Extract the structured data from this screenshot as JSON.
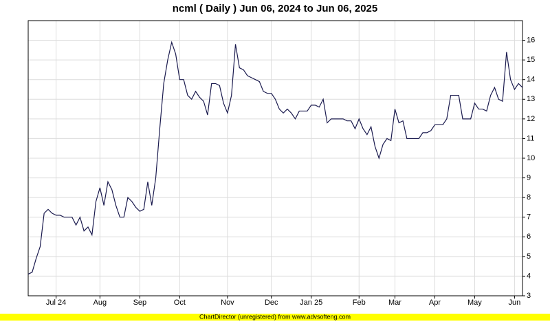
{
  "chart_data": {
    "type": "line",
    "title": "ncml ( Daily ) Jun 06, 2024 to Jun 06, 2025",
    "footer": "ChartDirector (unregistered) from www.advsofteng.com",
    "categories": [
      null,
      null,
      null,
      null,
      null,
      null,
      null,
      "Jul 24",
      null,
      null,
      null,
      null,
      null,
      null,
      null,
      null,
      null,
      null,
      "Aug",
      null,
      null,
      null,
      null,
      null,
      null,
      null,
      null,
      null,
      "Sep",
      null,
      null,
      null,
      null,
      null,
      null,
      null,
      null,
      null,
      "Oct",
      null,
      null,
      null,
      null,
      null,
      null,
      null,
      null,
      null,
      null,
      null,
      "Nov",
      null,
      null,
      null,
      null,
      null,
      null,
      null,
      null,
      null,
      null,
      "Dec",
      null,
      null,
      null,
      null,
      null,
      null,
      null,
      null,
      null,
      "Jan 25",
      null,
      null,
      null,
      null,
      null,
      null,
      null,
      null,
      null,
      null,
      null,
      "Feb",
      null,
      null,
      null,
      null,
      null,
      null,
      null,
      null,
      "Mar",
      null,
      null,
      null,
      null,
      null,
      null,
      null,
      null,
      null,
      "Apr",
      null,
      null,
      null,
      null,
      null,
      null,
      null,
      null,
      null,
      "May",
      null,
      null,
      null,
      null,
      null,
      null,
      null,
      null,
      null,
      "Jun",
      null,
      null
    ],
    "values": [
      4.1,
      4.2,
      4.9,
      5.5,
      7.2,
      7.4,
      7.2,
      7.1,
      7.1,
      7.0,
      7.0,
      7.0,
      6.6,
      7.0,
      6.3,
      6.5,
      6.1,
      7.8,
      8.5,
      7.6,
      8.8,
      8.4,
      7.6,
      7.0,
      7.0,
      8.0,
      7.8,
      7.5,
      7.3,
      7.4,
      8.8,
      7.6,
      9.0,
      11.5,
      13.8,
      15.0,
      15.9,
      15.3,
      14.0,
      14.0,
      13.2,
      13.0,
      13.4,
      13.1,
      12.9,
      12.2,
      13.8,
      13.8,
      13.7,
      12.8,
      12.3,
      13.2,
      15.8,
      14.6,
      14.5,
      14.2,
      14.1,
      14.0,
      13.9,
      13.4,
      13.3,
      13.3,
      13.0,
      12.5,
      12.3,
      12.5,
      12.3,
      12.0,
      12.4,
      12.4,
      12.4,
      12.7,
      12.7,
      12.6,
      13.0,
      11.8,
      12.0,
      12.0,
      12.0,
      12.0,
      11.9,
      11.9,
      11.5,
      12.0,
      11.5,
      11.2,
      11.6,
      10.6,
      10.0,
      10.7,
      11.0,
      10.9,
      12.5,
      11.8,
      11.9,
      11.0,
      11.0,
      11.0,
      11.0,
      11.3,
      11.3,
      11.4,
      11.7,
      11.7,
      11.7,
      12.0,
      13.2,
      13.2,
      13.2,
      12.0,
      12.0,
      12.0,
      12.8,
      12.5,
      12.5,
      12.4,
      13.2,
      13.6,
      13.0,
      12.9,
      15.4,
      14.0,
      13.5,
      13.8,
      13.6
    ],
    "color": "#1a1a4e",
    "ylim": [
      3,
      17
    ],
    "yticks": [
      3,
      4,
      5,
      6,
      7,
      8,
      9,
      10,
      11,
      12,
      13,
      14,
      15,
      16
    ],
    "grid": true
  }
}
